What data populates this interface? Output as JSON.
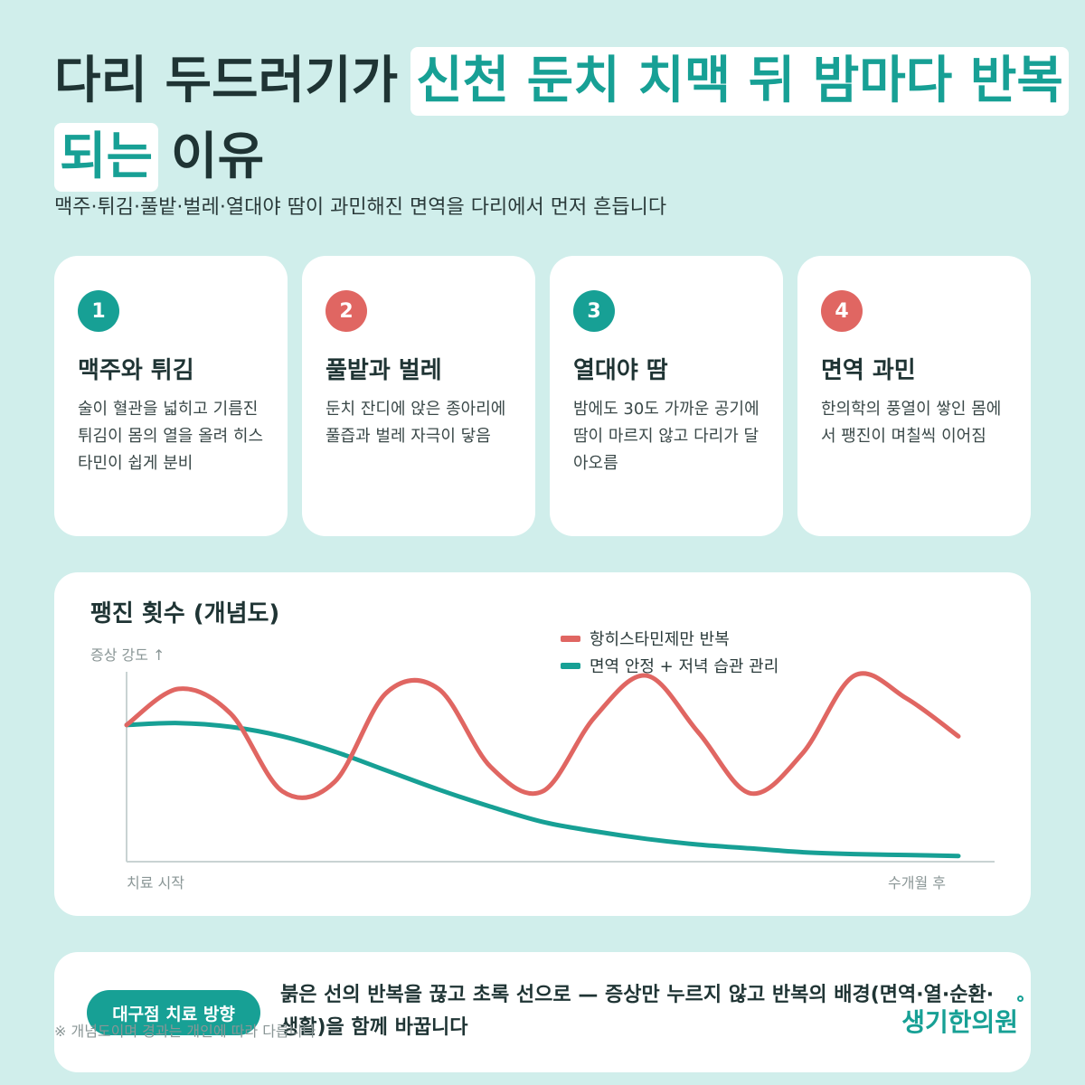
{
  "title": {
    "line1_plain": "다리 두드러기가",
    "line1_highlight": "신천 둔치 치맥 뒤 밤마다 반복",
    "line2_highlight": "되는",
    "line2_plain": "이유"
  },
  "subtitle": "맥주·튀김·풀밭·벌레·열대야 땀이 과민해진 면역을 다리에서 먼저 흔듭니다",
  "colors": {
    "teal": "#17a095",
    "red": "#e06662",
    "background": "#d0eeeb"
  },
  "cards": [
    {
      "number": "1",
      "title": "맥주와 튀김",
      "text": "술이 혈관을 넓히고 기름진 튀김이 몸의 열을 올려 히스타민이 쉽게 분비",
      "badge_color": "#17a095"
    },
    {
      "number": "2",
      "title": "풀밭과 벌레",
      "text": "둔치 잔디에 앉은 종아리에 풀즙과 벌레 자극이 닿음",
      "badge_color": "#e06662"
    },
    {
      "number": "3",
      "title": "열대야 땀",
      "text": "밤에도 30도 가까운 공기에 땀이 마르지 않고 다리가 달아오름",
      "badge_color": "#17a095"
    },
    {
      "number": "4",
      "title": "면역 과민",
      "text": "한의학의 풍열이 쌓인 몸에서 팽진이 며칠씩 이어짐",
      "badge_color": "#e06662"
    }
  ],
  "chart": {
    "title": "팽진 횟수 (개념도)",
    "y_label": "증상 강도 ↑",
    "x_start_label": "치료 시작",
    "x_end_label": "수개월 후"
  },
  "chart_data": {
    "type": "line",
    "title": "팽진 횟수 (개념도)",
    "ylabel": "증상 강도 ↑",
    "xlabel": "",
    "x_tick_labels": [
      "치료 시작",
      "수개월 후"
    ],
    "x": [
      0,
      0.0625,
      0.125,
      0.1875,
      0.25,
      0.3125,
      0.375,
      0.4375,
      0.5,
      0.5625,
      0.625,
      0.6875,
      0.75,
      0.8125,
      0.875,
      0.9375,
      1.0
    ],
    "ylim": [
      0,
      1
    ],
    "series": [
      {
        "name": "항히스타민제만 반복",
        "color": "#e06662",
        "values": [
          0.72,
          0.91,
          0.78,
          0.37,
          0.42,
          0.89,
          0.91,
          0.5,
          0.37,
          0.76,
          0.98,
          0.68,
          0.36,
          0.57,
          0.98,
          0.86,
          0.66
        ]
      },
      {
        "name": "면역 안정 + 저녁 습관 관리",
        "color": "#17a095",
        "values": [
          0.72,
          0.73,
          0.71,
          0.66,
          0.58,
          0.48,
          0.38,
          0.29,
          0.21,
          0.16,
          0.12,
          0.09,
          0.07,
          0.05,
          0.04,
          0.035,
          0.03
        ]
      }
    ],
    "grid": false,
    "legend": "top-center"
  },
  "footer": {
    "pill_label": "대구점 치료 방향",
    "text": "붉은 선의 반복을 끊고 초록 선으로 — 증상만 누르지 않고 반복의 배경(면역·열·순환·생활)을 함께 바꿉니다",
    "footnote": "※ 개념도이며 경과는 개인에 따라 다릅니다",
    "logo": "생기한의원"
  }
}
